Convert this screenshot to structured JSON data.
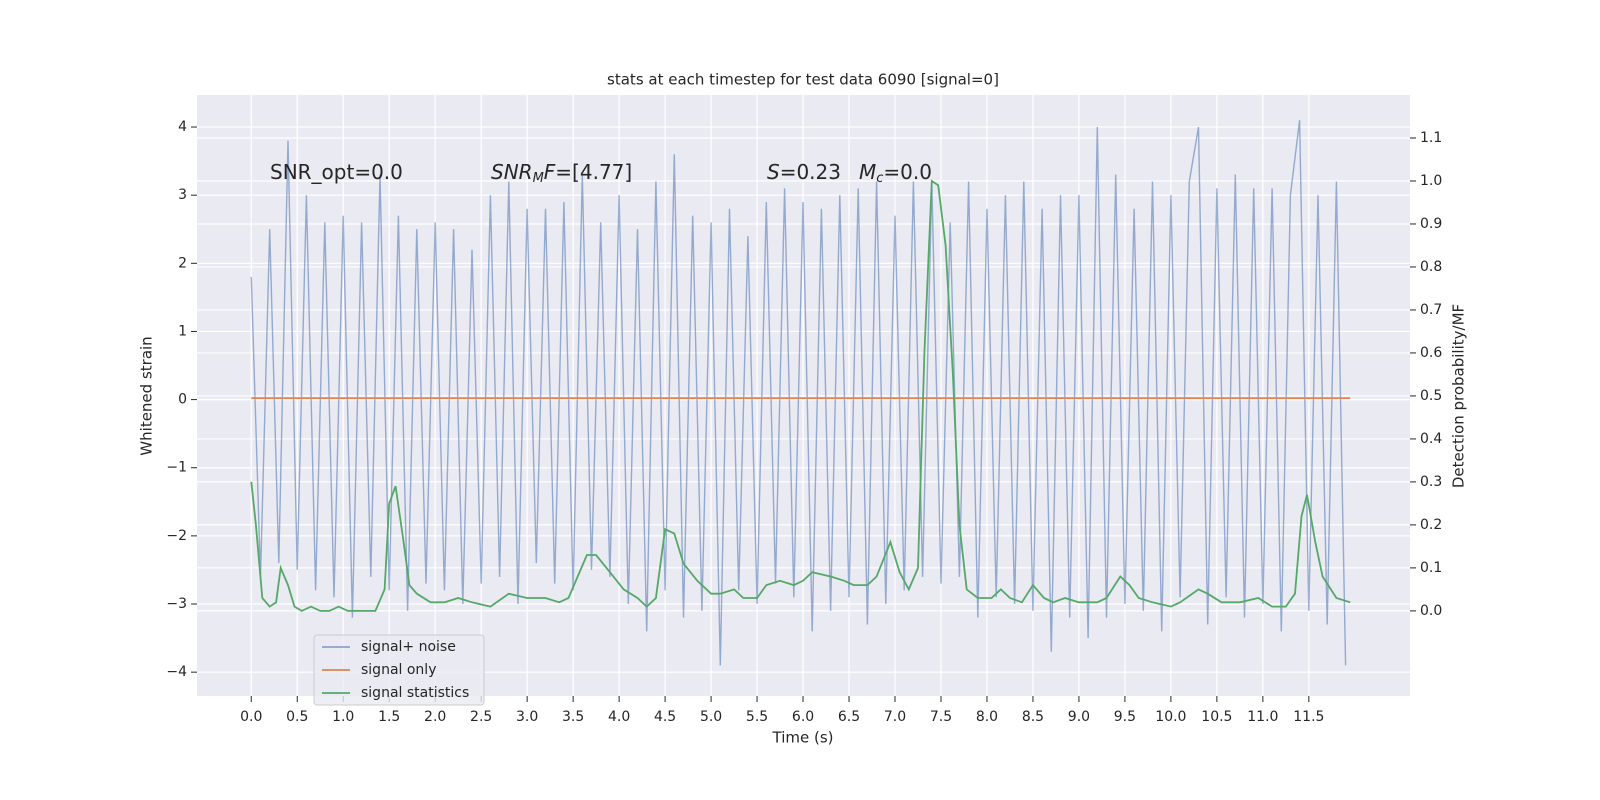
{
  "chart_data": {
    "type": "line",
    "title": "stats at each timestep for test data 6090 [signal=0]",
    "x_label": "Time (s)",
    "y_label": "Whitened strain",
    "y2_label": "Detection probability/MF",
    "annotations": [
      [
        "SNR_opt=0.0"
      ],
      [
        "SNR",
        "M",
        "F",
        "=[4.77]"
      ],
      [
        "S",
        "=0.23"
      ],
      [
        "M",
        "c",
        "=0.0"
      ]
    ],
    "xlim": [
      -0.59,
      12.6
    ],
    "ylim": [
      -4.35,
      4.47
    ],
    "y2lim": [
      -0.198,
      1.2
    ],
    "xticks": [
      {
        "value": 0,
        "label": "0.0"
      },
      0.5,
      {
        "value": 1,
        "label": "1.0"
      },
      1.5,
      {
        "value": 2,
        "label": "2.0"
      },
      2.5,
      {
        "value": 3,
        "label": "3.0"
      },
      3.5,
      {
        "value": 4,
        "label": "4.0"
      },
      4.5,
      {
        "value": 5,
        "label": "5.0"
      },
      5.5,
      {
        "value": 6,
        "label": "6.0"
      },
      6.5,
      {
        "value": 7,
        "label": "7.0"
      },
      7.5,
      {
        "value": 8,
        "label": "8.0"
      },
      8.5,
      {
        "value": 9,
        "label": "9.0"
      },
      9.5,
      {
        "value": 10,
        "label": "10.0"
      },
      10.5,
      {
        "value": 11,
        "label": "11.0"
      },
      11.5
    ],
    "yticks": [
      {
        "value": -4,
        "label": "−4"
      },
      {
        "value": -3,
        "label": "−3"
      },
      {
        "value": -2,
        "label": "−2"
      },
      {
        "value": -1,
        "label": "−1"
      },
      0,
      1,
      2,
      3,
      4
    ],
    "y2ticks": [
      {
        "value": 0,
        "label": "0.0"
      },
      0.1,
      0.2,
      0.3,
      0.4,
      0.5,
      0.6,
      0.7,
      0.8,
      0.9,
      {
        "value": 1,
        "label": "1.0"
      },
      1.1
    ],
    "grid": true,
    "legend": "lower left",
    "series": [
      {
        "name": "signal+ noise",
        "color": "#4c72b0",
        "x": [
          0,
          0.1,
          0.2,
          0.3,
          0.4,
          0.5,
          0.6,
          0.7,
          0.8,
          0.9,
          1,
          1.1,
          1.2,
          1.3,
          1.4,
          1.5,
          1.6,
          1.7,
          1.8,
          1.9,
          2,
          2.1,
          2.2,
          2.3,
          2.4,
          2.5,
          2.6,
          2.7,
          2.8,
          2.9,
          3,
          3.1,
          3.2,
          3.3,
          3.4,
          3.5,
          3.6,
          3.7,
          3.8,
          3.9,
          4,
          4.1,
          4.2,
          4.3,
          4.4,
          4.5,
          4.6,
          4.7,
          4.8,
          4.9,
          5,
          5.1,
          5.2,
          5.3,
          5.4,
          5.5,
          5.6,
          5.7,
          5.8,
          5.9,
          6,
          6.1,
          6.2,
          6.3,
          6.4,
          6.5,
          6.6,
          6.7,
          6.8,
          6.9,
          7,
          7.1,
          7.2,
          7.3,
          7.4,
          7.5,
          7.6,
          7.7,
          7.8,
          7.9,
          8,
          8.1,
          8.2,
          8.3,
          8.4,
          8.5,
          8.6,
          8.7,
          8.8,
          8.9,
          9,
          9.1,
          9.2,
          9.3,
          9.4,
          9.5,
          9.6,
          9.7,
          9.8,
          9.9,
          10,
          10.1,
          10.2,
          10.3,
          10.4,
          10.5,
          10.6,
          10.7,
          10.8,
          10.9,
          11,
          11.1,
          11.2,
          11.3,
          11.4,
          11.5,
          11.6,
          11.7,
          11.8,
          11.9
        ],
        "values": [
          1.8,
          -2.6,
          2.5,
          -2.4,
          3.8,
          -2.5,
          3.0,
          -2.8,
          2.6,
          -2.9,
          2.7,
          -3.2,
          2.6,
          -2.6,
          3.3,
          -2.8,
          2.7,
          -3.1,
          2.5,
          -2.7,
          2.6,
          -2.8,
          2.5,
          -3.0,
          2.2,
          -2.7,
          3.0,
          -2.6,
          3.2,
          -3.0,
          2.8,
          -2.4,
          2.8,
          -2.7,
          2.9,
          -2.8,
          3.3,
          -2.5,
          2.6,
          -2.6,
          3.0,
          -3.0,
          2.5,
          -3.4,
          3.2,
          -2.8,
          3.6,
          -3.2,
          2.7,
          -3.1,
          2.6,
          -3.9,
          2.8,
          -2.8,
          2.4,
          -3.0,
          2.9,
          -2.7,
          3.1,
          -2.9,
          2.9,
          -3.4,
          2.8,
          -3.1,
          3.0,
          -2.9,
          3.1,
          -3.3,
          3.2,
          -3.0,
          2.7,
          -2.8,
          3.2,
          -2.6,
          3.2,
          -2.7,
          2.6,
          -2.6,
          3.2,
          -3.2,
          2.8,
          -2.9,
          3.0,
          -3.0,
          3.2,
          -3.1,
          2.8,
          -3.7,
          3.0,
          -3.2,
          3.0,
          -3.5,
          4.0,
          -3.2,
          3.3,
          -3.0,
          2.8,
          -3.1,
          3.2,
          -3.4,
          3.0,
          -2.9,
          3.2,
          4.0,
          -3.3,
          3.1,
          -2.9,
          3.3,
          -3.2,
          3.1,
          -3.0,
          3.1,
          -3.4,
          3.0,
          4.1,
          -3.1,
          3.0,
          -3.3,
          3.2,
          -3.9
        ]
      },
      {
        "name": "signal only",
        "color": "#dd8452",
        "x": [
          0,
          11.95
        ],
        "values": [
          0.02,
          0.02
        ]
      },
      {
        "name": "signal statistics",
        "color": "#55a868",
        "axis": "y2",
        "x": [
          0,
          0.05,
          0.12,
          0.2,
          0.27,
          0.32,
          0.4,
          0.47,
          0.55,
          0.65,
          0.75,
          0.85,
          0.95,
          1.05,
          1.2,
          1.35,
          1.45,
          1.5,
          1.57,
          1.65,
          1.72,
          1.8,
          1.95,
          2.1,
          2.25,
          2.4,
          2.6,
          2.8,
          3,
          3.2,
          3.35,
          3.45,
          3.55,
          3.65,
          3.75,
          3.9,
          4.05,
          4.2,
          4.3,
          4.4,
          4.5,
          4.6,
          4.7,
          4.85,
          5,
          5.1,
          5.25,
          5.35,
          5.5,
          5.6,
          5.75,
          5.9,
          6,
          6.1,
          6.3,
          6.45,
          6.55,
          6.7,
          6.8,
          6.95,
          7.05,
          7.15,
          7.25,
          7.32,
          7.4,
          7.47,
          7.55,
          7.63,
          7.7,
          7.78,
          7.9,
          8.05,
          8.15,
          8.25,
          8.38,
          8.5,
          8.62,
          8.72,
          8.85,
          9,
          9.2,
          9.3,
          9.45,
          9.55,
          9.65,
          9.8,
          10,
          10.1,
          10.3,
          10.4,
          10.55,
          10.75,
          10.95,
          11.1,
          11.25,
          11.35,
          11.42,
          11.48,
          11.57,
          11.65,
          11.8,
          11.95
        ],
        "values": [
          0.3,
          0.2,
          0.03,
          0.01,
          0.02,
          0.1,
          0.06,
          0.01,
          0.0,
          0.01,
          0.0,
          0.0,
          0.01,
          0.0,
          0.0,
          0.0,
          0.05,
          0.25,
          0.29,
          0.17,
          0.06,
          0.04,
          0.02,
          0.02,
          0.03,
          0.02,
          0.01,
          0.04,
          0.03,
          0.03,
          0.02,
          0.03,
          0.08,
          0.13,
          0.13,
          0.09,
          0.05,
          0.03,
          0.01,
          0.03,
          0.19,
          0.18,
          0.11,
          0.07,
          0.04,
          0.04,
          0.05,
          0.03,
          0.03,
          0.06,
          0.07,
          0.06,
          0.07,
          0.09,
          0.08,
          0.07,
          0.06,
          0.06,
          0.08,
          0.16,
          0.09,
          0.05,
          0.1,
          0.6,
          1.0,
          0.99,
          0.85,
          0.55,
          0.2,
          0.05,
          0.03,
          0.03,
          0.05,
          0.03,
          0.02,
          0.06,
          0.03,
          0.02,
          0.03,
          0.02,
          0.02,
          0.03,
          0.08,
          0.06,
          0.03,
          0.02,
          0.01,
          0.02,
          0.05,
          0.04,
          0.02,
          0.02,
          0.03,
          0.01,
          0.01,
          0.04,
          0.22,
          0.27,
          0.16,
          0.08,
          0.03,
          0.02
        ]
      }
    ]
  }
}
